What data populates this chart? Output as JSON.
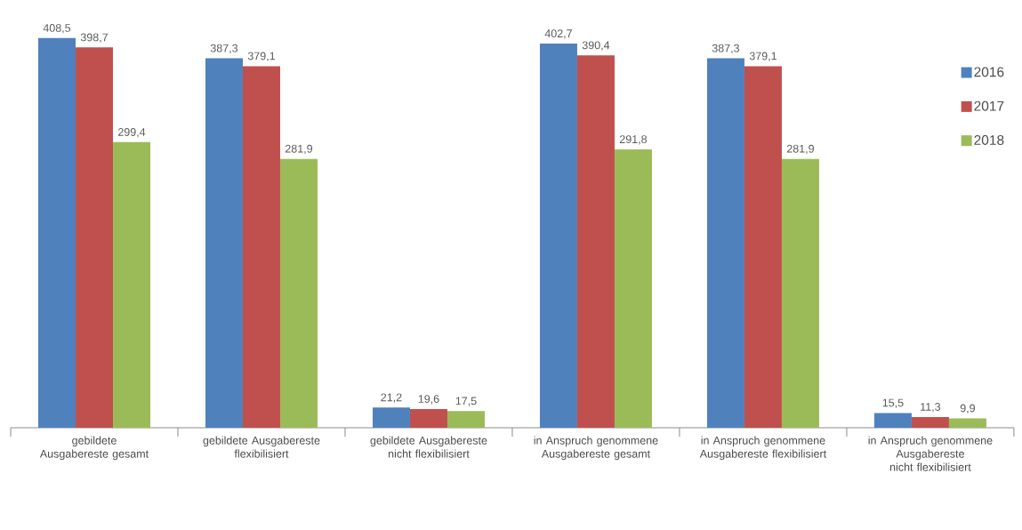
{
  "chart_data": {
    "type": "bar",
    "categories": [
      "gebildete Ausgabereste gesamt",
      "gebildete Ausgabereste flexibilisiert",
      "gebildete Ausgabereste nicht flexibilisiert",
      "in Anspruch genommene Ausgabereste gesamt",
      "in Anspruch genommene Ausgabereste flexibilisiert",
      "in Anspruch genommene Ausgabereste nicht flexibilisiert"
    ],
    "series": [
      {
        "name": "2016",
        "color": "#4f81bd",
        "values": [
          408.5,
          387.3,
          21.2,
          402.7,
          387.3,
          15.5
        ],
        "value_labels": [
          "408,5",
          "387,3",
          "21,2",
          "402,7",
          "387,3",
          "15,5"
        ]
      },
      {
        "name": "2017",
        "color": "#c0504d",
        "values": [
          398.7,
          379.1,
          19.6,
          390.4,
          379.1,
          11.3
        ],
        "value_labels": [
          "398,7",
          "379,1",
          "19,6",
          "390,4",
          "379,1",
          "11,3"
        ]
      },
      {
        "name": "2018",
        "color": "#9bbb59",
        "values": [
          299.4,
          281.9,
          17.5,
          291.8,
          281.9,
          9.9
        ],
        "value_labels": [
          "299,4",
          "281,9",
          "17,5",
          "291,8",
          "281,9",
          "9,9"
        ]
      }
    ],
    "legend": "right"
  }
}
